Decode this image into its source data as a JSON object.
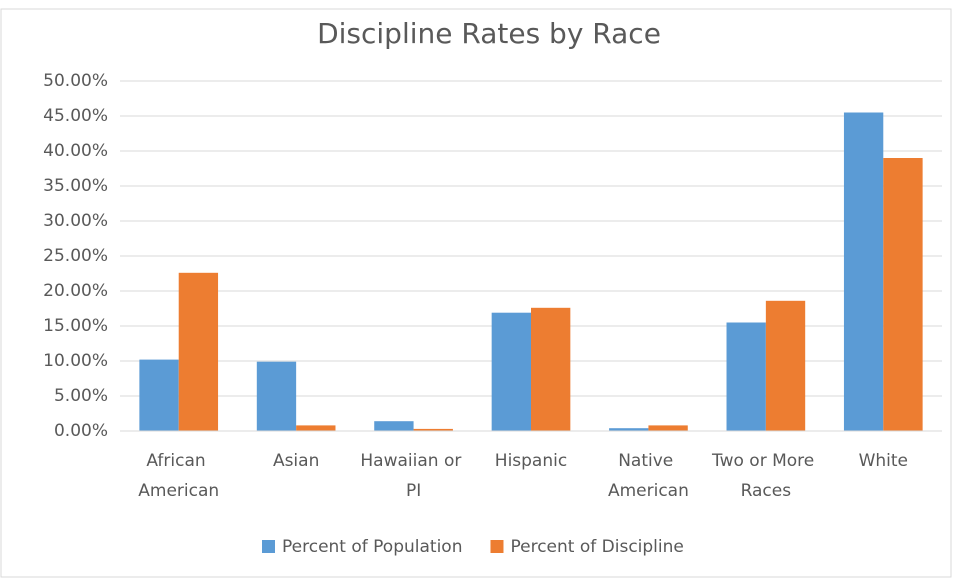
{
  "chart_data": {
    "type": "bar",
    "title": "Discipline Rates by Race",
    "categories": [
      "African American",
      "Asian",
      "Hawaiian or PI",
      "Hispanic",
      "Native American",
      "Two or More Races",
      "White"
    ],
    "series": [
      {
        "name": "Percent of Population",
        "color": "#5b9bd5",
        "values": [
          10.2,
          9.9,
          1.4,
          16.9,
          0.4,
          15.5,
          45.5
        ]
      },
      {
        "name": "Percent of Discipline",
        "color": "#ed7d31",
        "values": [
          22.6,
          0.8,
          0.3,
          17.6,
          0.8,
          18.6,
          39.0
        ]
      }
    ],
    "ylim": [
      0,
      50
    ],
    "yticks": [
      {
        "value": 0,
        "label": "0.00%"
      },
      {
        "value": 5,
        "label": "5.00%"
      },
      {
        "value": 10,
        "label": "10.00%"
      },
      {
        "value": 15,
        "label": "15.00%"
      },
      {
        "value": 20,
        "label": "20.00%"
      },
      {
        "value": 25,
        "label": "25.00%"
      },
      {
        "value": 30,
        "label": "30.00%"
      },
      {
        "value": 35,
        "label": "35.00%"
      },
      {
        "value": 40,
        "label": "40.00%"
      },
      {
        "value": 45,
        "label": "45.00%"
      },
      {
        "value": 50,
        "label": "50.00%"
      }
    ],
    "grid": true,
    "legend": "bottom"
  }
}
